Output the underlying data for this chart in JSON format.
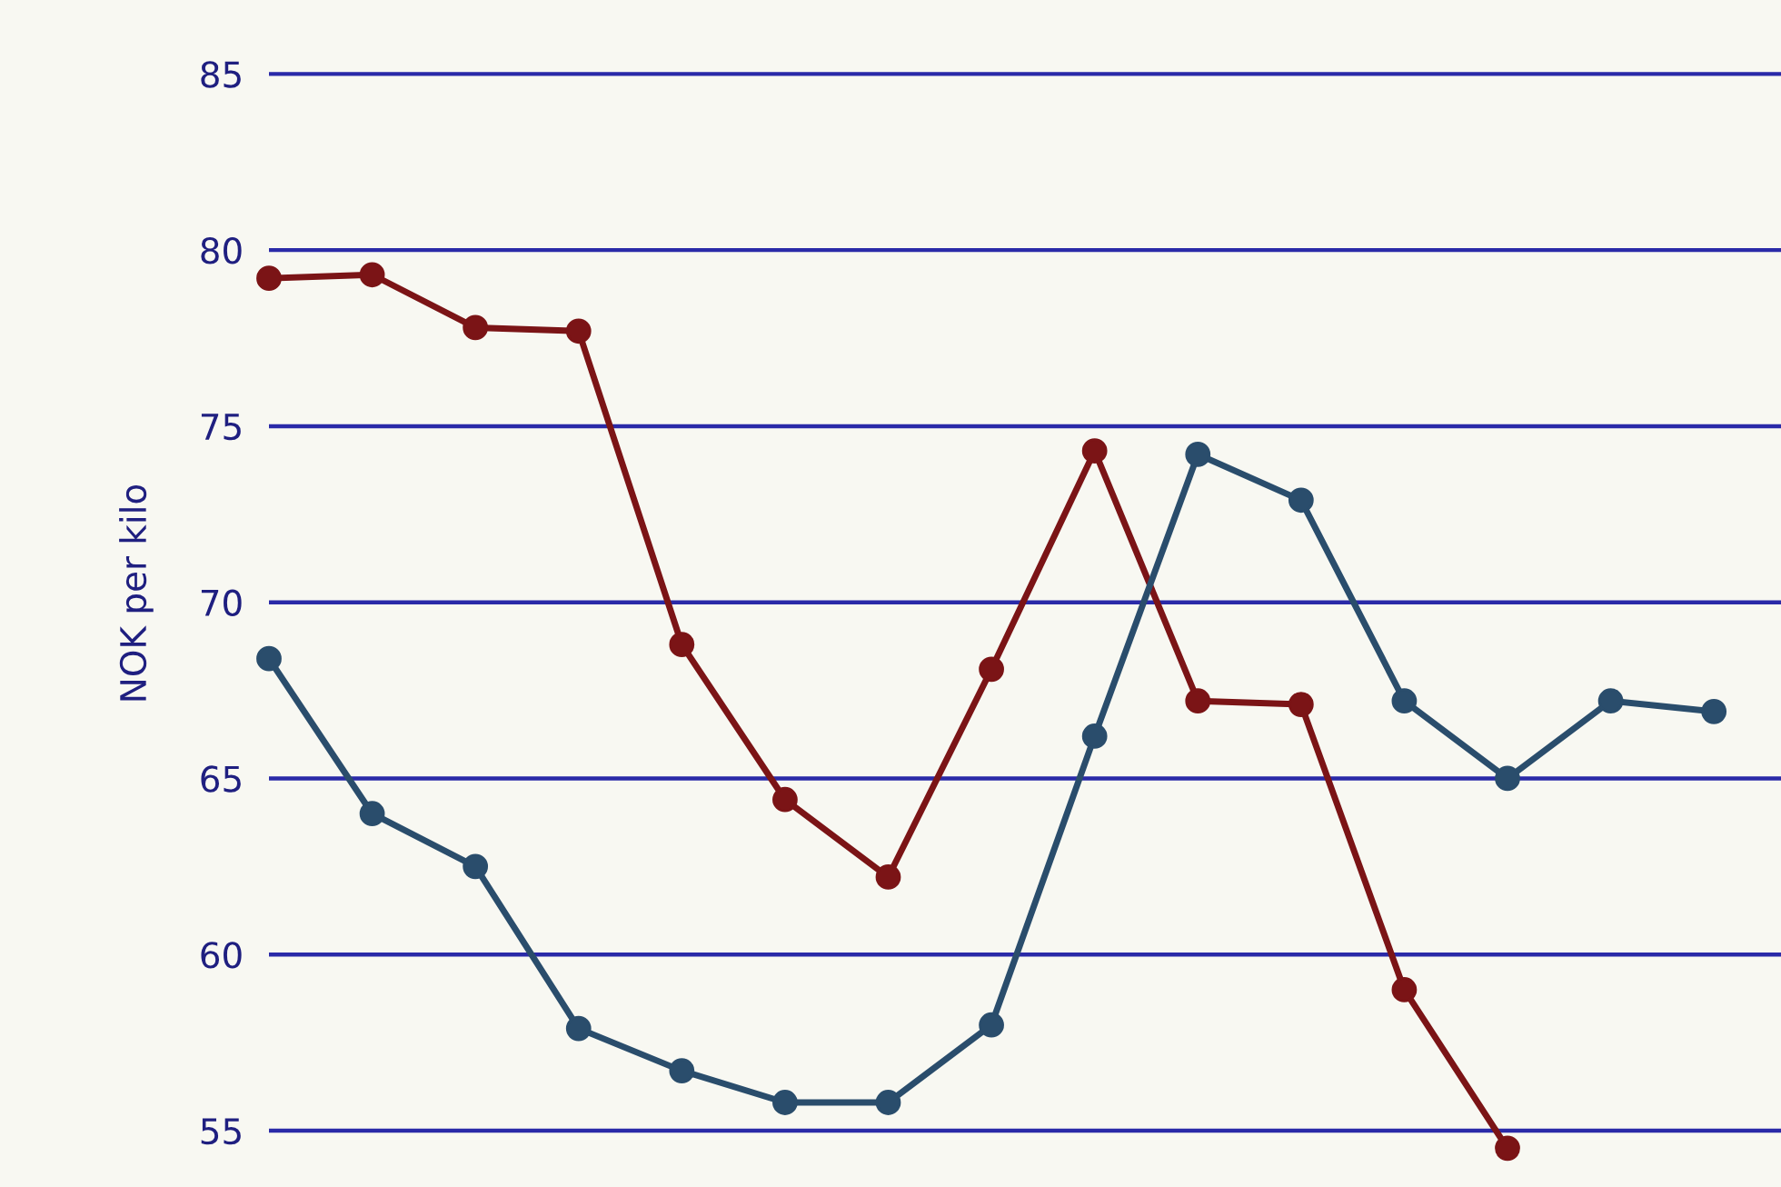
{
  "chart_data": {
    "type": "line",
    "ylabel": "NOK per kilo",
    "categories": [
      null,
      null,
      null,
      null,
      null,
      null,
      null,
      null,
      null,
      null,
      null,
      null,
      null,
      null,
      null
    ],
    "series": [
      {
        "color": "#7b1416",
        "values": [
          79.2,
          79.3,
          77.8,
          77.7,
          68.8,
          64.4,
          62.2,
          68.1,
          74.3,
          67.2,
          67.1,
          59.0,
          54.5,
          null,
          null
        ]
      },
      {
        "color": "#2a4d6c",
        "values": [
          68.4,
          64.0,
          62.5,
          57.9,
          56.7,
          55.8,
          55.8,
          58.0,
          66.2,
          74.2,
          72.9,
          67.2,
          65.0,
          67.2,
          66.9
        ]
      }
    ],
    "ylim": [
      53.4,
      87.1
    ],
    "yticks": [
      55,
      60,
      65,
      70,
      75,
      80,
      85
    ],
    "grid": "y",
    "marker": "circle",
    "line_style": "solid",
    "legend": false
  }
}
